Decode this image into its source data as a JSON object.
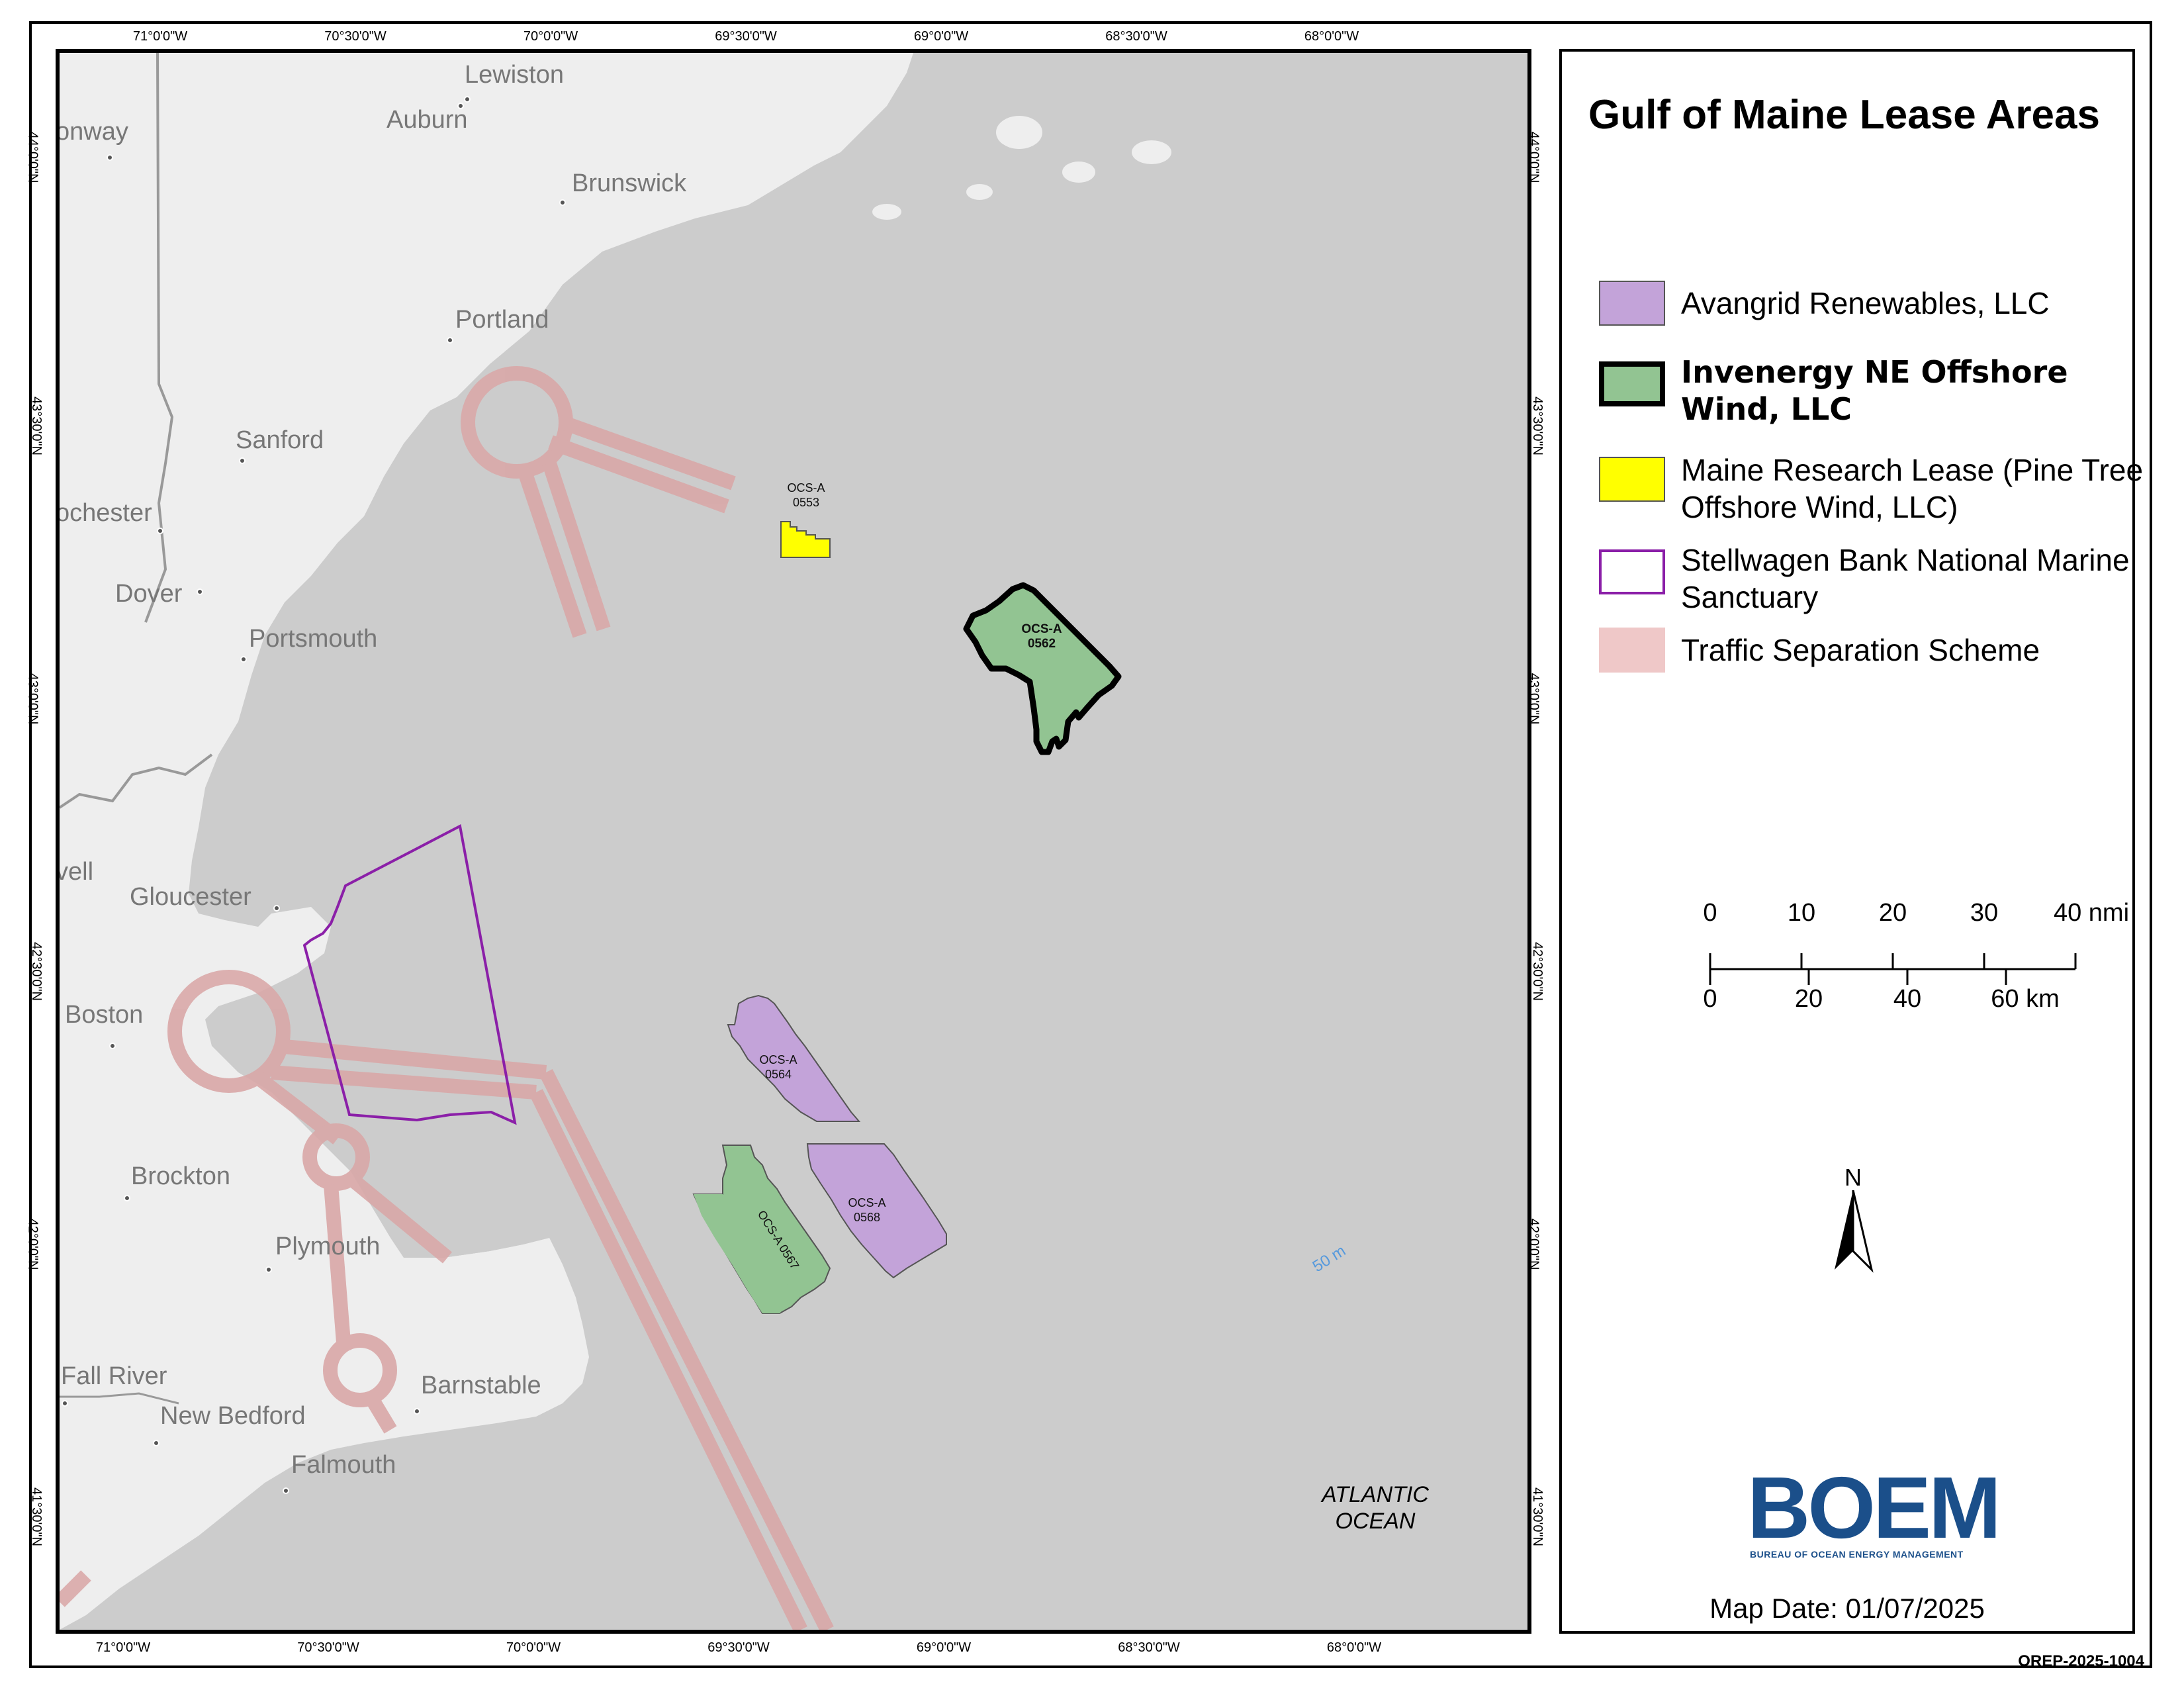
{
  "title": "Gulf of Maine Lease Areas",
  "graticule": {
    "top": [
      "71°0'0\"W",
      "70°30'0\"W",
      "70°0'0\"W",
      "69°30'0\"W",
      "69°0'0\"W",
      "68°30'0\"W",
      "68°0'0\"W"
    ],
    "bottom": [
      "71°0'0\"W",
      "70°30'0\"W",
      "70°0'0\"W",
      "69°30'0\"W",
      "69°0'0\"W",
      "68°30'0\"W",
      "68°0'0\"W"
    ],
    "left": [
      "44°0'0\"N",
      "43°30'0\"N",
      "43°0'0\"N",
      "42°30'0\"N",
      "42°0'0\"N",
      "41°30'0\"N"
    ],
    "right": [
      "44°0'0\"N",
      "43°30'0\"N",
      "43°0'0\"N",
      "42°30'0\"N",
      "42°0'0\"N",
      "41°30'0\"N"
    ]
  },
  "places": [
    "Lewiston",
    "Auburn",
    "onway",
    "Brunswick",
    "Portland",
    "Sanford",
    "ochester",
    "Dover",
    "Portsmouth",
    "vell",
    "Gloucester",
    "Boston",
    "Brockton",
    "Plymouth",
    "Fall River",
    "New Bedford",
    "Barnstable",
    "Falmouth"
  ],
  "lease_labels": {
    "l0553": [
      "OCS-A",
      "0553"
    ],
    "l0562": [
      "OCS-A",
      "0562"
    ],
    "l0564": [
      "OCS-A",
      "0564"
    ],
    "l0568": [
      "OCS-A",
      "0568"
    ],
    "l0567": "OCS-A 0567"
  },
  "ocean_label": [
    "ATLANTIC",
    "OCEAN"
  ],
  "depth_label": "50 m",
  "legend": [
    {
      "label": "Avangrid Renewables, LLC",
      "fill": "#c3a3d9",
      "stroke": "#555555",
      "bold": false
    },
    {
      "label": "Invenergy NE Offshore Wind, LLC",
      "fill": "#92c492",
      "stroke": "#000000",
      "bold": true
    },
    {
      "label": "Maine Research Lease (Pine Tree Offshore Wind, LLC)",
      "fill": "#ffff00",
      "stroke": "#555555",
      "bold": false
    },
    {
      "label": "Stellwagen Bank National Marine Sanctuary",
      "fill": "#ffffff",
      "stroke": "#8b1fa8",
      "bold": false
    },
    {
      "label": "Traffic Separation Scheme",
      "fill": "#efc8c8",
      "stroke": "#efc8c8",
      "bold": false
    }
  ],
  "scalebar": {
    "nmi_ticks": [
      "0",
      "10",
      "20",
      "30",
      "40 nmi"
    ],
    "km_ticks": [
      "0",
      "20",
      "40",
      "60 km"
    ]
  },
  "north_label": "N",
  "logo": {
    "word": "BOEM",
    "subtitle": "BUREAU OF OCEAN ENERGY MANAGEMENT"
  },
  "map_date": "Map Date: 01/07/2025",
  "document_id": "OREP-2025-1004",
  "colors": {
    "land": "#eeeeee",
    "water": "#cccccc",
    "tss": "#d9a8a8",
    "sanctuary": "#8b1fa8",
    "avangrid": "#c3a3d9",
    "invenergy": "#92c492",
    "maine_research": "#ffff00"
  }
}
